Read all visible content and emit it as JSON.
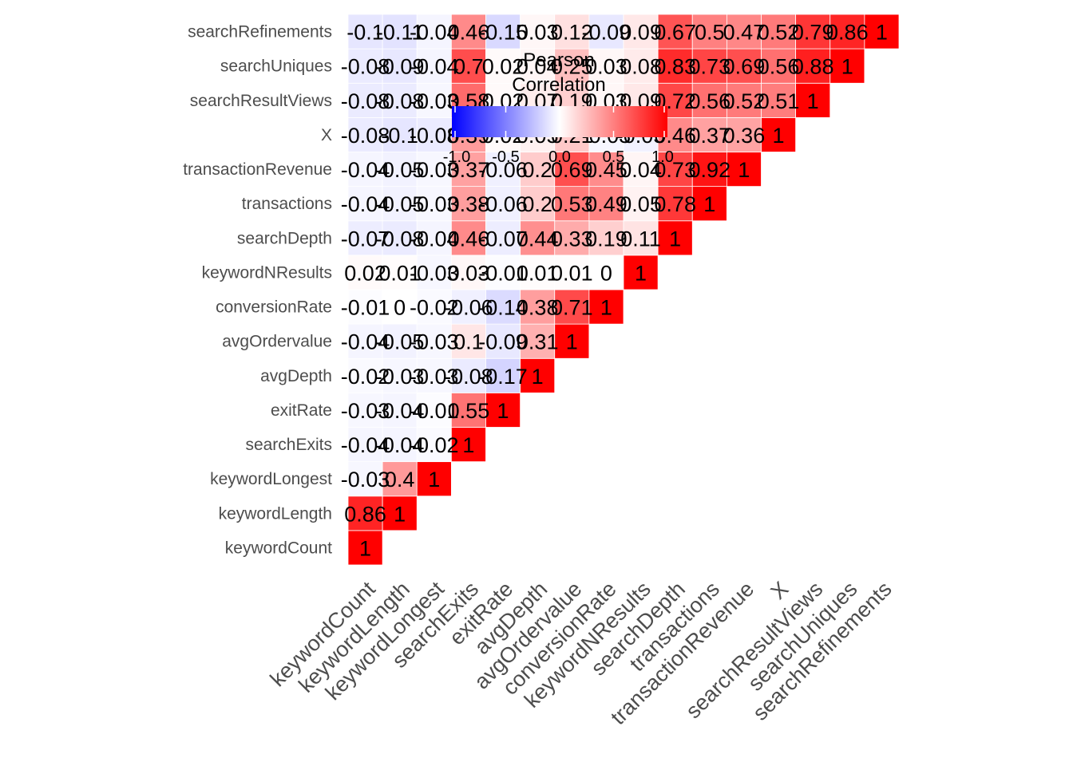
{
  "chart_data": {
    "type": "heatmap",
    "variables": [
      "keywordCount",
      "keywordLength",
      "keywordLongest",
      "searchExits",
      "exitRate",
      "avgDepth",
      "avgOrdervalue",
      "conversionRate",
      "keywordNResults",
      "searchDepth",
      "transactions",
      "transactionRevenue",
      "X",
      "searchResultViews",
      "searchUniques",
      "searchRefinements"
    ],
    "lower_triangle": [
      [
        "1"
      ],
      [
        "0.86",
        "1"
      ],
      [
        "-0.03",
        "0.4",
        "1"
      ],
      [
        "-0.04",
        "-0.04",
        "-0.02",
        "1"
      ],
      [
        "-0.03",
        "-0.04",
        "-0.01",
        "0.55",
        "1"
      ],
      [
        "-0.02",
        "-0.03",
        "-0.03",
        "-0.08",
        "-0.17",
        "1"
      ],
      [
        "-0.04",
        "-0.05",
        "-0.03",
        "0.1",
        "-0.09",
        "0.31",
        "1"
      ],
      [
        "-0.01",
        "0",
        "-0.02",
        "-0.06",
        "-0.14",
        "0.38",
        "0.71",
        "1"
      ],
      [
        "0.02",
        "0.01",
        "-0.03",
        "0.03",
        "-0.01",
        "0.01",
        "0.01",
        "0",
        "1"
      ],
      [
        "-0.07",
        "-0.08",
        "-0.04",
        "0.46",
        "-0.07",
        "0.44",
        "0.33",
        "0.19",
        "0.11",
        "1"
      ],
      [
        "-0.04",
        "-0.05",
        "-0.03",
        "0.38",
        "-0.06",
        "0.2",
        "0.53",
        "0.49",
        "0.05",
        "0.78",
        "1"
      ],
      [
        "-0.04",
        "-0.05",
        "-0.03",
        "0.37",
        "-0.06",
        "0.2",
        "0.69",
        "0.45",
        "0.04",
        "0.73",
        "0.92",
        "1"
      ],
      [
        "-0.08",
        "-0.1",
        "-0.08",
        "0.39",
        "0.02",
        "0.05",
        "0.21",
        "-0.03",
        "-0.05",
        "0.46",
        "0.37",
        "0.36",
        "1"
      ],
      [
        "-0.08",
        "-0.08",
        "-0.03",
        "0.58",
        "0.02",
        "0.07",
        "0.19",
        "0.03",
        "0.09",
        "0.72",
        "0.56",
        "0.52",
        "0.51",
        "1"
      ],
      [
        "-0.08",
        "-0.09",
        "-0.04",
        "0.7",
        "0.02",
        "0.04",
        "0.25",
        "0.03",
        "0.08",
        "0.83",
        "0.73",
        "0.69",
        "0.56",
        "0.88",
        "1"
      ],
      [
        "-0.1",
        "-0.11",
        "-0.04",
        "0.46",
        "-0.15",
        "0.03",
        "0.12",
        "-0.09",
        "0.09",
        "0.67",
        "0.5",
        "0.47",
        "0.52",
        "0.79",
        "0.86",
        "1"
      ]
    ],
    "color_scale": {
      "low": "#0000ff",
      "mid": "#ffffff",
      "high": "#ff0000",
      "limits": [
        -1,
        1
      ]
    },
    "legend": {
      "title_lines": [
        "Pearson",
        "Correlation"
      ],
      "ticks": [
        "-1.0",
        "-0.5",
        "0.0",
        "0.5",
        "1.0"
      ],
      "position": "top-center",
      "orientation": "horizontal"
    },
    "grid": false
  }
}
